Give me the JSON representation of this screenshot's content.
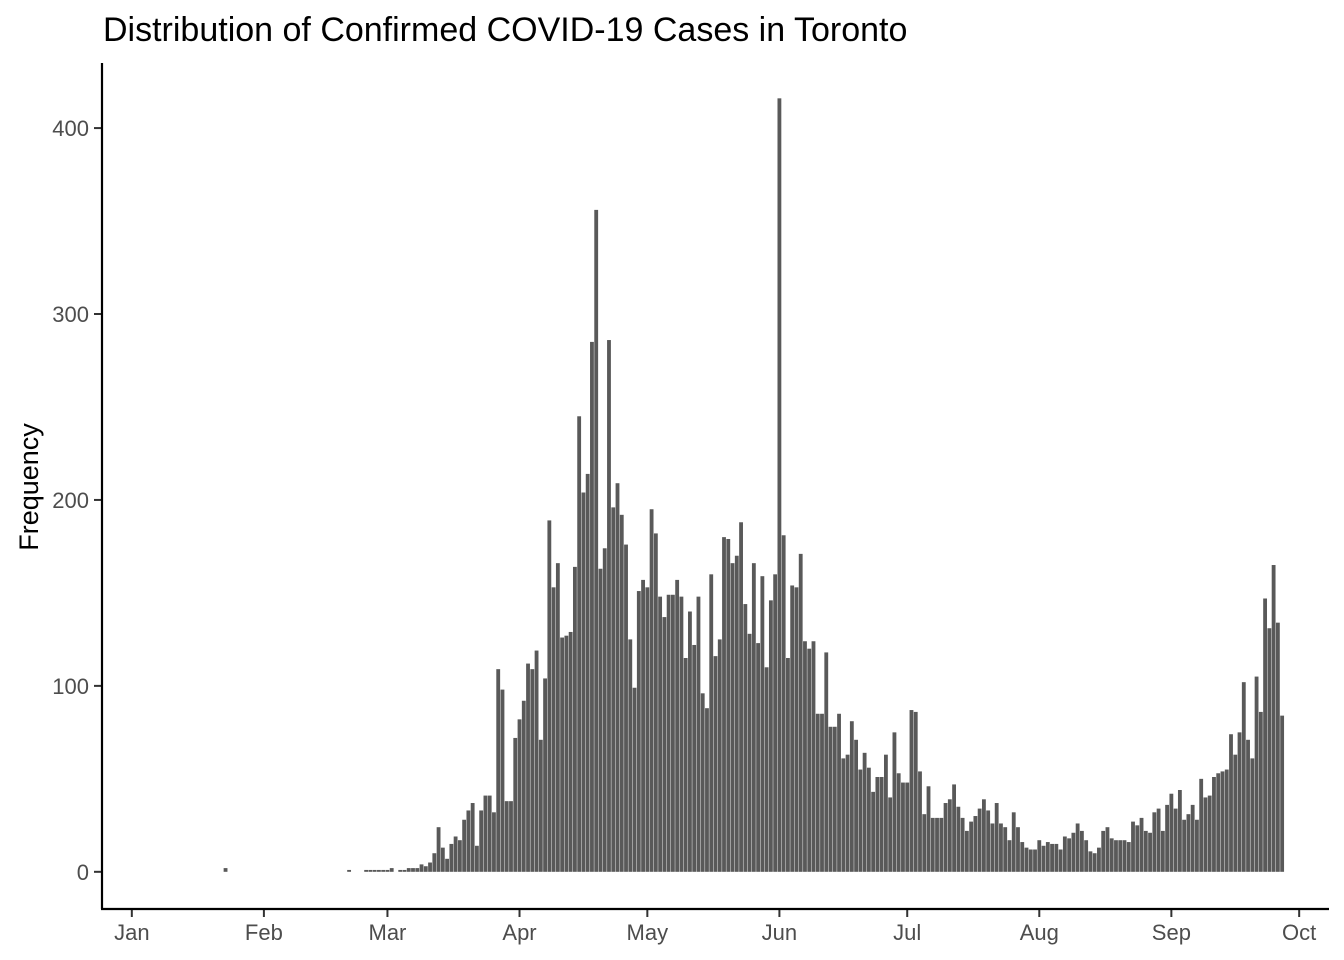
{
  "chart_data": {
    "type": "bar",
    "title": "Distribution of Confirmed COVID-19 Cases in Toronto",
    "xlabel": "",
    "ylabel": "Frequency",
    "grid": false,
    "legend": "none",
    "bar_color": "#595959",
    "axis_color": "#000000",
    "tick_label_color": "#4d4d4d",
    "x_axis": {
      "type": "date",
      "range": [
        "2019-12-25",
        "2020-10-08"
      ],
      "ticks": [
        {
          "date": "2020-01-01",
          "label": "Jan"
        },
        {
          "date": "2020-02-01",
          "label": "Feb"
        },
        {
          "date": "2020-03-01",
          "label": "Mar"
        },
        {
          "date": "2020-04-01",
          "label": "Apr"
        },
        {
          "date": "2020-05-01",
          "label": "May"
        },
        {
          "date": "2020-06-01",
          "label": "Jun"
        },
        {
          "date": "2020-07-01",
          "label": "Jul"
        },
        {
          "date": "2020-08-01",
          "label": "Aug"
        },
        {
          "date": "2020-09-01",
          "label": "Sep"
        },
        {
          "date": "2020-10-01",
          "label": "Oct"
        }
      ]
    },
    "y_axis": {
      "range": [
        -20,
        435
      ],
      "ticks": [
        {
          "value": 0,
          "label": "0"
        },
        {
          "value": 100,
          "label": "100"
        },
        {
          "value": 200,
          "label": "200"
        },
        {
          "value": 300,
          "label": "300"
        },
        {
          "value": 400,
          "label": "400"
        }
      ]
    },
    "series": [
      {
        "start_date": "2020-01-23",
        "values": [
          2,
          0,
          0,
          0,
          0,
          0,
          0,
          0,
          0,
          0,
          0,
          0,
          0,
          0,
          0,
          0,
          0,
          0,
          0,
          0,
          0,
          0,
          0,
          0,
          0,
          0,
          0,
          0,
          0,
          1,
          0,
          0,
          0,
          1,
          1,
          1,
          1,
          1,
          1,
          2,
          0,
          1,
          1,
          2,
          2,
          2,
          4,
          3,
          5,
          10,
          24,
          13,
          7,
          15,
          19,
          17,
          28,
          33,
          37,
          14,
          33,
          41,
          41,
          32,
          109,
          98,
          38,
          38,
          72,
          82,
          92,
          112,
          109,
          119,
          71,
          104,
          189,
          153,
          166,
          126,
          127,
          129,
          164,
          245,
          204,
          214,
          285,
          356,
          163,
          174,
          286,
          196,
          209,
          192,
          176,
          125,
          99,
          151,
          157,
          153,
          195,
          182,
          148,
          137,
          149,
          149,
          157,
          148,
          115,
          140,
          122,
          148,
          96,
          88,
          160,
          116,
          125,
          180,
          179,
          166,
          170,
          188,
          144,
          128,
          166,
          123,
          159,
          110,
          146,
          160,
          416,
          181,
          115,
          154,
          153,
          171,
          124,
          120,
          124,
          85,
          85,
          118,
          78,
          78,
          85,
          61,
          63,
          81,
          71,
          55,
          64,
          56,
          43,
          51,
          51,
          63,
          40,
          75,
          53,
          48,
          48,
          87,
          86,
          54,
          31,
          46,
          29,
          29,
          29,
          37,
          39,
          47,
          35,
          29,
          22,
          27,
          30,
          34,
          39,
          33,
          26,
          37,
          26,
          24,
          17,
          32,
          24,
          16,
          13,
          12,
          12,
          17,
          14,
          16,
          15,
          15,
          12,
          19,
          18,
          21,
          26,
          22,
          17,
          11,
          10,
          13,
          22,
          24,
          18,
          17,
          17,
          17,
          16,
          27,
          25,
          29,
          22,
          21,
          32,
          34,
          22,
          36,
          42,
          34,
          44,
          28,
          31,
          36,
          28,
          50,
          40,
          41,
          51,
          53,
          54,
          55,
          74,
          63,
          75,
          102,
          71,
          61,
          105,
          86,
          147,
          131,
          165,
          134,
          84
        ]
      }
    ]
  }
}
